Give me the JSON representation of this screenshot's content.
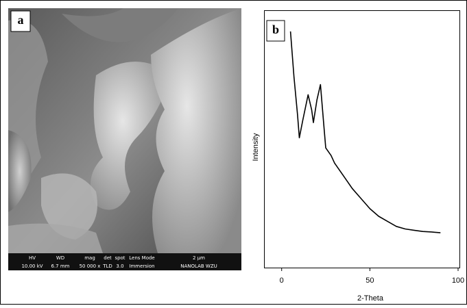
{
  "panel_a": {
    "label": "a",
    "info_bar": [
      {
        "header": "HV",
        "value": "10.00 kV"
      },
      {
        "header": "WD",
        "value": "6.7 mm"
      },
      {
        "header": "mag",
        "value": "50 000 x"
      },
      {
        "header": "det",
        "value": "TLD"
      },
      {
        "header": "spot",
        "value": "3.0"
      },
      {
        "header": "Lens Mode",
        "value": "Immersion"
      },
      {
        "header": "2 µm",
        "value": "NANOLAB WZU"
      }
    ]
  },
  "chart_data": {
    "type": "line",
    "label": "b",
    "xlabel": "2-Theta",
    "ylabel": "Intensity",
    "x": [
      5,
      7,
      9,
      10,
      12,
      15,
      17,
      18,
      20,
      22,
      24,
      25,
      28,
      30,
      35,
      40,
      45,
      50,
      55,
      60,
      65,
      70,
      75,
      80,
      85,
      90
    ],
    "values": [
      93,
      75,
      60,
      51,
      58,
      68,
      62,
      57,
      66,
      72,
      55,
      47,
      44,
      41,
      36,
      31,
      27,
      23,
      20,
      18,
      16,
      15,
      14.5,
      14,
      13.8,
      13.5
    ],
    "color": "#000000",
    "xlim": [
      -10,
      100
    ],
    "xticks": [
      0,
      50,
      100
    ],
    "ylim": [
      0,
      100
    ]
  }
}
